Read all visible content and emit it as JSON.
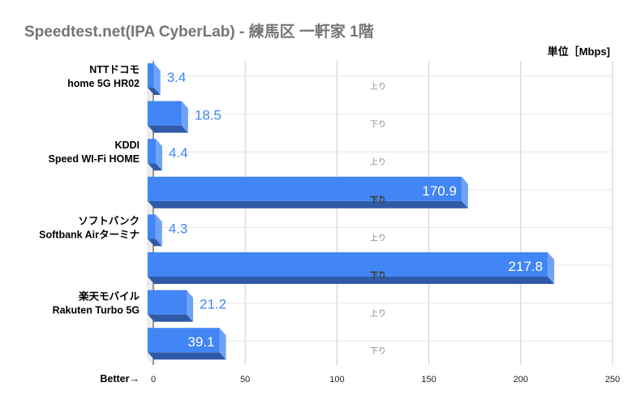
{
  "chart_data": {
    "type": "bar",
    "orientation": "horizontal",
    "title": "Speedtest.net(IPA CyberLab) - 練馬区 一軒家 1階",
    "unit_label": "単位［Mbps]",
    "xlabel": "Better→",
    "xlim": [
      0,
      250
    ],
    "xticks": [
      "0",
      "50",
      "100",
      "150",
      "200",
      "250"
    ],
    "grid": true,
    "groups": [
      {
        "label_lines": [
          "NTTドコモ",
          "home 5G HR02"
        ]
      },
      {
        "label_lines": [
          "KDDI",
          "Speed WI-Fi HOME"
        ]
      },
      {
        "label_lines": [
          "ソフトバンク",
          "Softbank Airターミナ"
        ]
      },
      {
        "label_lines": [
          "楽天モバイル",
          "Rakuten Turbo 5G"
        ]
      }
    ],
    "series_labels": [
      "上り",
      "下り"
    ],
    "bars": [
      {
        "group": 0,
        "direction": "上り",
        "value": 3.4,
        "label": "3.4"
      },
      {
        "group": 0,
        "direction": "下り",
        "value": 18.5,
        "label": "18.5"
      },
      {
        "group": 1,
        "direction": "上り",
        "value": 4.4,
        "label": "4.4"
      },
      {
        "group": 1,
        "direction": "下り",
        "value": 170.9,
        "label": "170.9"
      },
      {
        "group": 2,
        "direction": "上り",
        "value": 4.3,
        "label": "4.3"
      },
      {
        "group": 2,
        "direction": "下り",
        "value": 217.8,
        "label": "217.8"
      },
      {
        "group": 3,
        "direction": "上り",
        "value": 21.2,
        "label": "21.2"
      },
      {
        "group": 3,
        "direction": "下り",
        "value": 39.1,
        "label": "39.1"
      }
    ],
    "colors": {
      "front": "#4285f4",
      "side": "#6ea2f7",
      "bottom": "#2f5aa8",
      "label_outside": "#4285f4",
      "title": "#757575"
    }
  }
}
